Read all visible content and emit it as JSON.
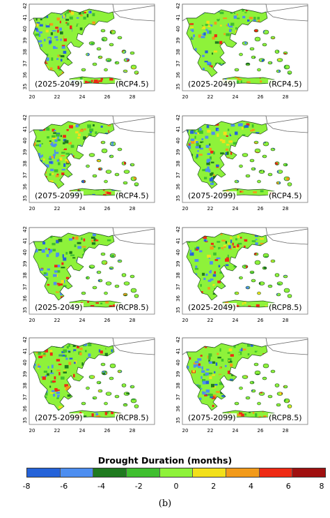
{
  "panels": [
    {
      "period": "(2025-2049)",
      "scenario": "(RCP4.5)"
    },
    {
      "period": "(2025-2049)",
      "scenario": "(RCP4.5)"
    },
    {
      "period": "(2075-2099)",
      "scenario": "(RCP4.5)"
    },
    {
      "period": "(2075-2099)",
      "scenario": "(RCP4.5)"
    },
    {
      "period": "(2025-2049)",
      "scenario": "(RCP8.5)"
    },
    {
      "period": "(2025-2049)",
      "scenario": "(RCP8.5)"
    },
    {
      "period": "(2075-2099)",
      "scenario": "(RCP8.5)"
    },
    {
      "period": "(2075-2099)",
      "scenario": "(RCP8.5)"
    }
  ],
  "x_ticks": [
    "20",
    "22",
    "24",
    "26",
    "28"
  ],
  "y_ticks": [
    "35",
    "36",
    "37",
    "38",
    "39",
    "40",
    "41",
    "42"
  ],
  "legend": {
    "title": "Drought Duration (months)",
    "ticks": [
      "-8",
      "-6",
      "-4",
      "-2",
      "0",
      "2",
      "4",
      "6",
      "8"
    ],
    "colors": [
      "#2563d9",
      "#4d8ef0",
      "#1f7a1f",
      "#3fbf2f",
      "#8ef23a",
      "#f2e01a",
      "#f29a1a",
      "#ee2a14",
      "#a01010"
    ]
  },
  "figure_label": "(b)"
}
